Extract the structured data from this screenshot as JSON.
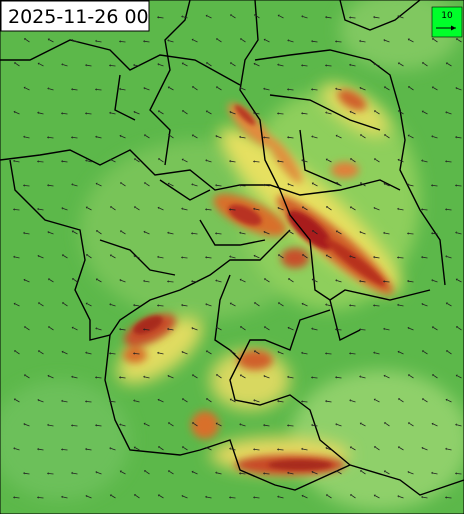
{
  "timestamp": "2025-11-26 00",
  "legend": {
    "label": "10"
  }
}
